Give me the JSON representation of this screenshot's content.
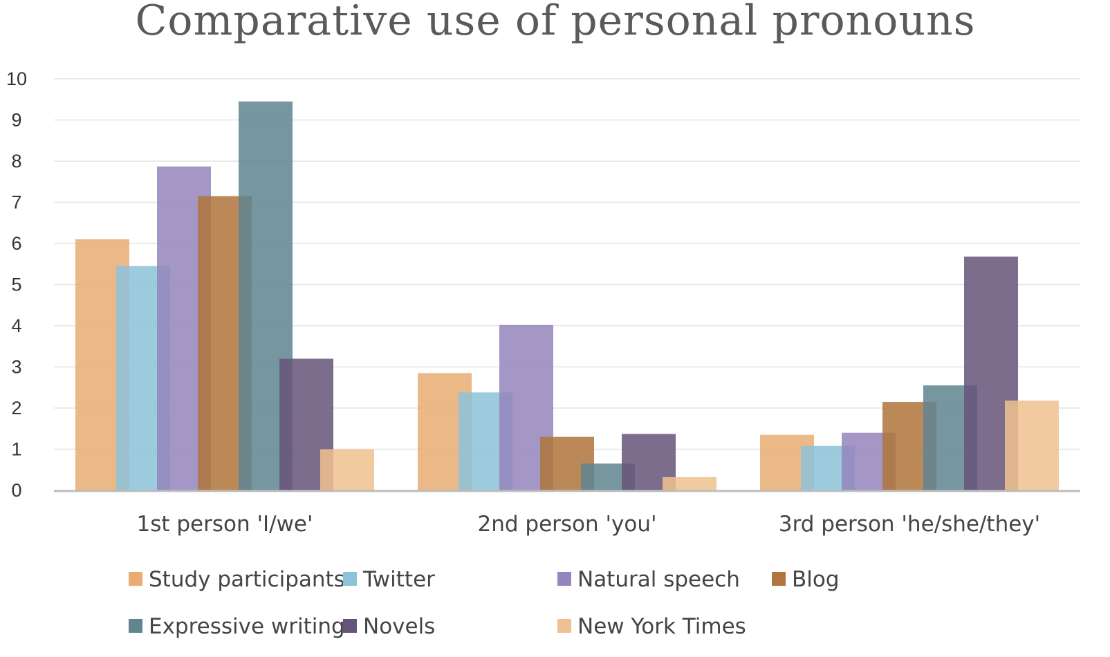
{
  "chart_data": {
    "type": "bar",
    "title": "Comparative use of personal pronouns",
    "xlabel": "",
    "ylabel": "",
    "ylim": [
      0,
      10
    ],
    "yticks": [
      0,
      1,
      2,
      3,
      4,
      5,
      6,
      7,
      8,
      9,
      10
    ],
    "grid": true,
    "legend_position": "bottom",
    "categories": [
      "1st person 'I/we'",
      "2nd person 'you'",
      "3rd person 'he/she/they'"
    ],
    "series": [
      {
        "name": "Study participants",
        "color": "#e8ac74",
        "values": [
          6.1,
          2.85,
          1.35
        ]
      },
      {
        "name": "Twitter",
        "color": "#8dc3d9",
        "values": [
          5.45,
          2.38,
          1.08
        ]
      },
      {
        "name": "Natural speech",
        "color": "#9586bd",
        "values": [
          7.87,
          4.02,
          1.4
        ]
      },
      {
        "name": "Blog",
        "color": "#b0763d",
        "values": [
          7.15,
          1.3,
          2.15
        ]
      },
      {
        "name": "Expressive writing",
        "color": "#5f8590",
        "values": [
          9.45,
          0.65,
          2.55
        ]
      },
      {
        "name": "Novels",
        "color": "#66557a",
        "values": [
          3.2,
          1.37,
          5.68
        ]
      },
      {
        "name": "New York Times",
        "color": "#f0c190",
        "values": [
          1.0,
          0.32,
          2.18
        ]
      }
    ]
  }
}
